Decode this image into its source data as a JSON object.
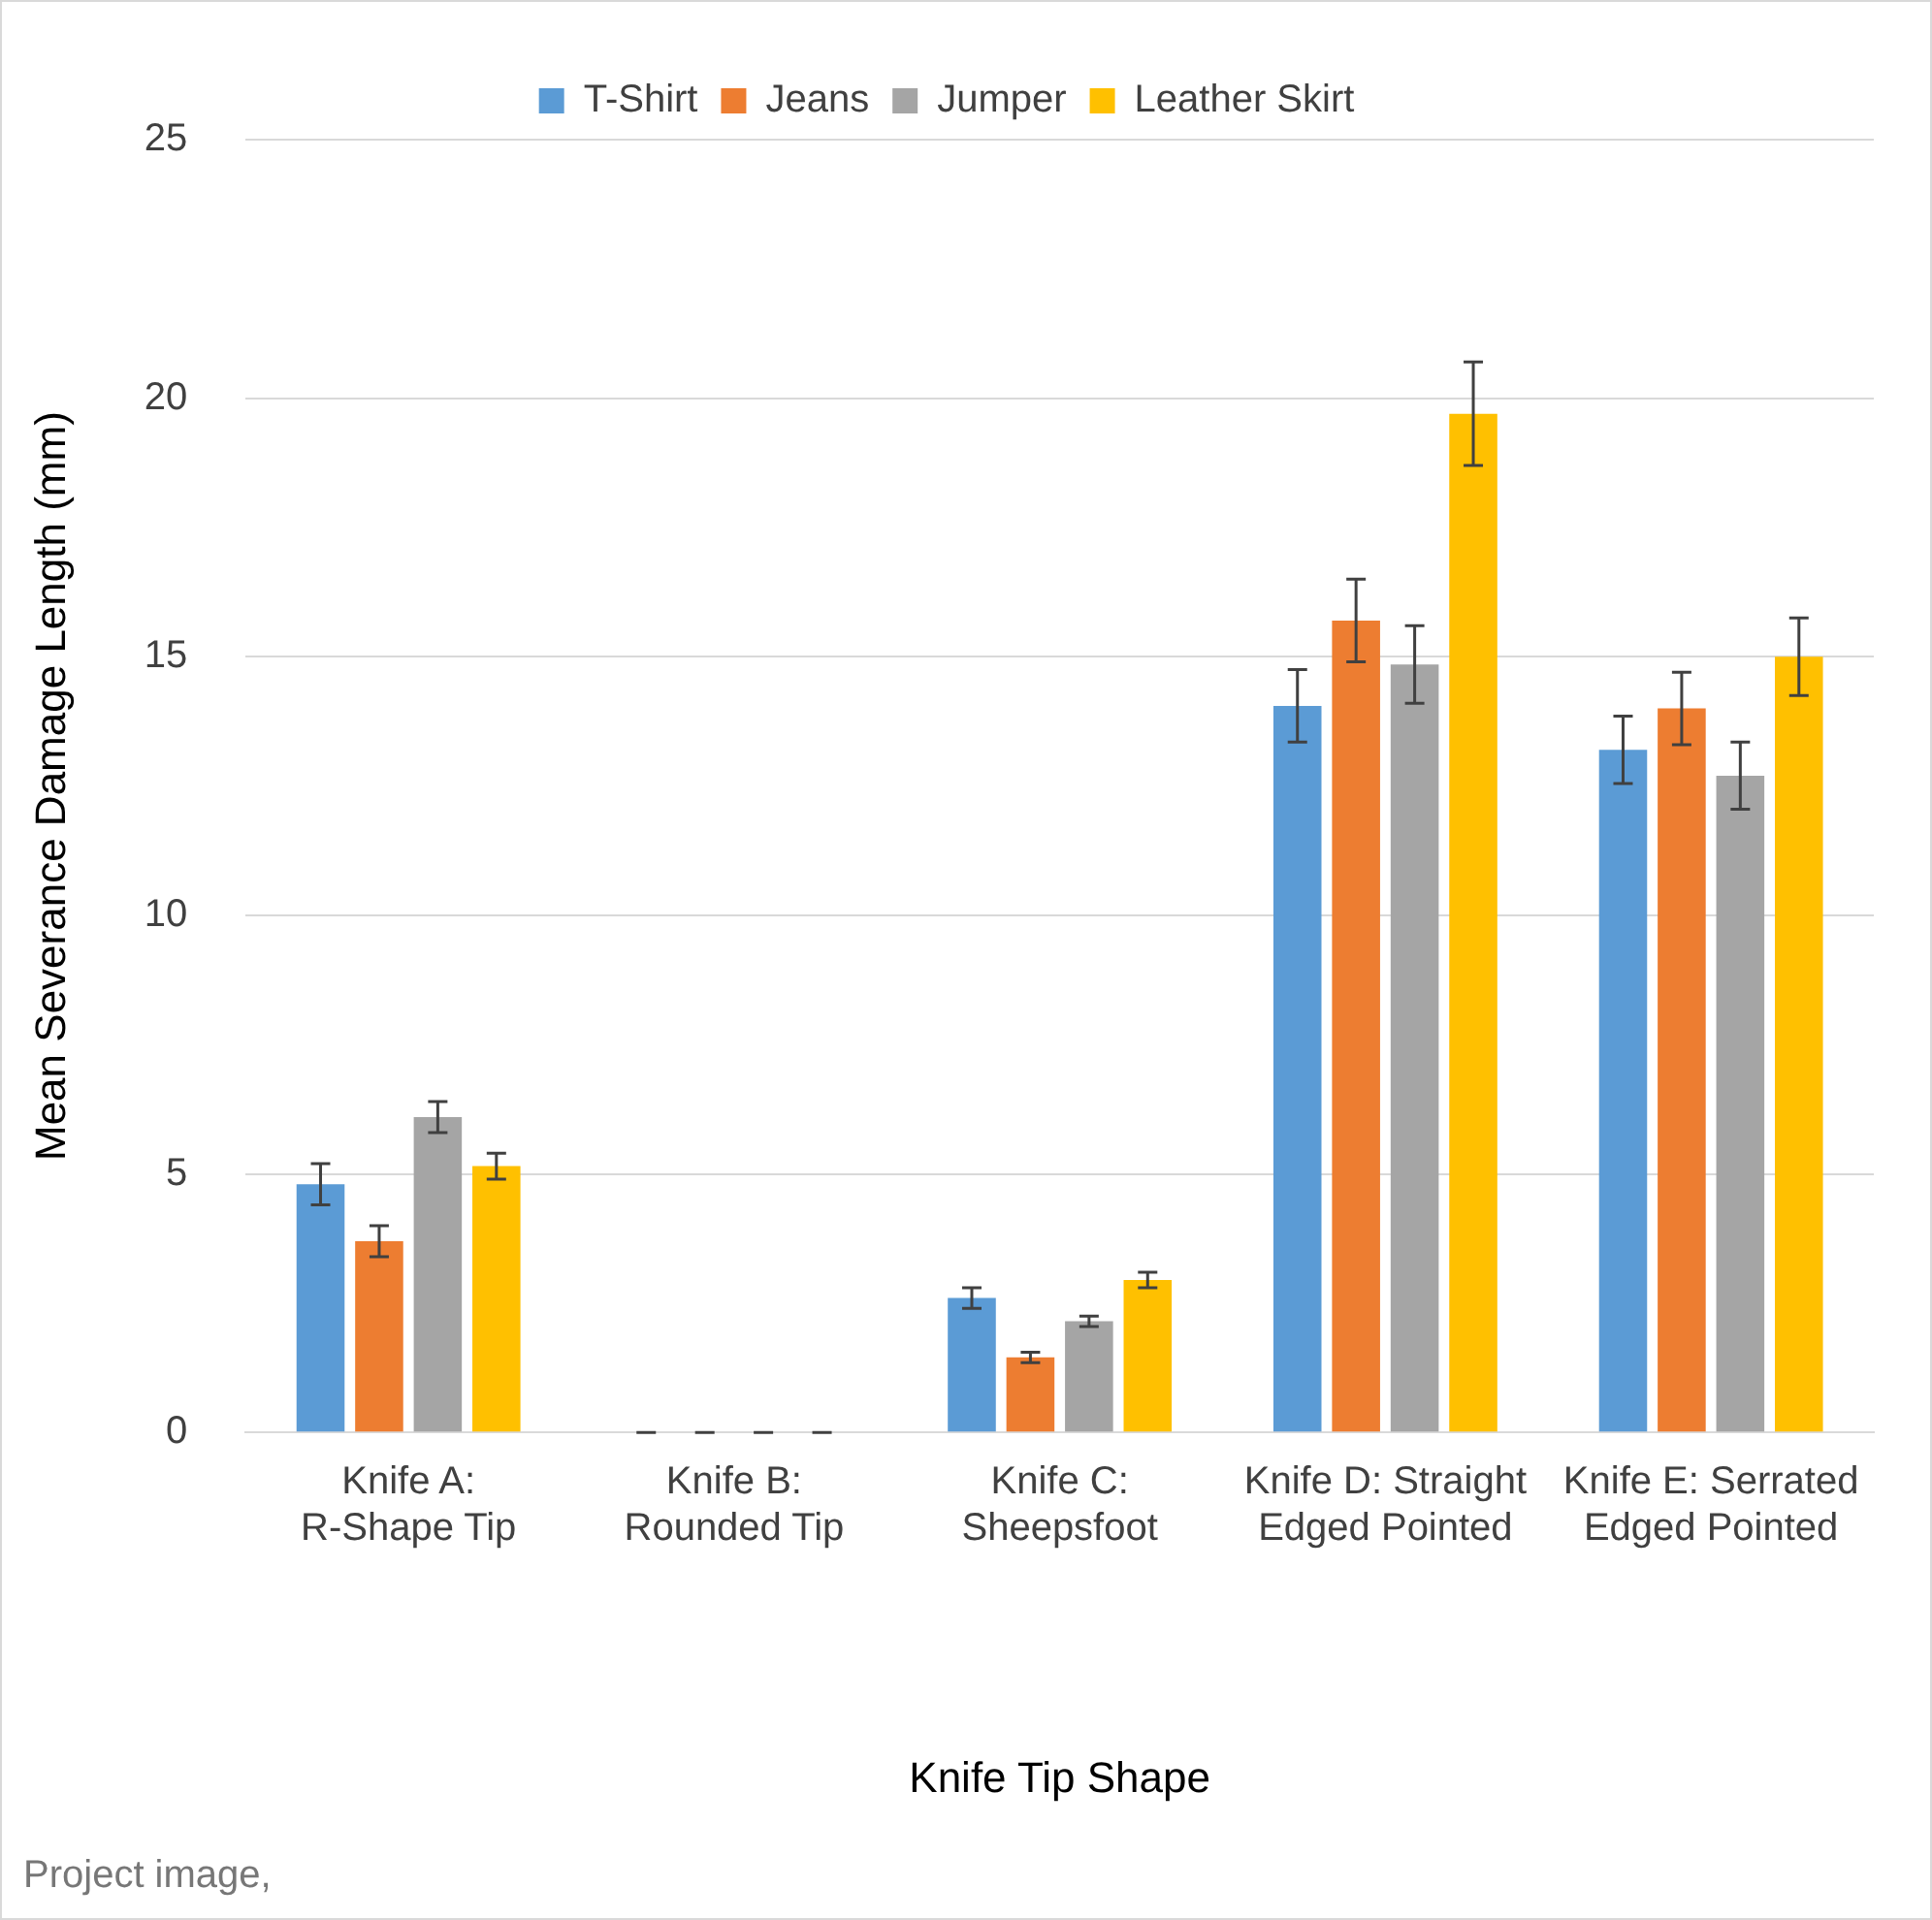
{
  "chart_data": {
    "type": "bar",
    "xlabel": "Knife Tip Shape",
    "ylabel": "Mean Severance Damage Length (mm)",
    "categories": [
      "Knife A:\nR-Shape Tip",
      "Knife B:\nRounded Tip",
      "Knife C:\nSheepsfoot",
      "Knife D: Straight\nEdged Pointed",
      "Knife E: Serrated\nEdged Pointed"
    ],
    "series": [
      {
        "name": "T-Shirt",
        "color": "#5b9bd5",
        "values": [
          4.8,
          0,
          2.6,
          14.05,
          13.2
        ],
        "errors": [
          0.4,
          0,
          0.2,
          0.7,
          0.65
        ]
      },
      {
        "name": "Jeans",
        "color": "#ed7d31",
        "values": [
          3.7,
          0,
          1.45,
          15.7,
          14
        ],
        "errors": [
          0.3,
          0,
          0.1,
          0.8,
          0.7
        ]
      },
      {
        "name": "Jumper",
        "color": "#a5a5a5",
        "values": [
          6.1,
          0,
          2.15,
          14.85,
          12.7
        ],
        "errors": [
          0.3,
          0,
          0.1,
          0.75,
          0.65
        ]
      },
      {
        "name": "Leather Skirt",
        "color": "#ffc000",
        "values": [
          5.15,
          0,
          2.95,
          19.7,
          15
        ],
        "errors": [
          0.25,
          0,
          0.15,
          1,
          0.75
        ]
      }
    ],
    "ylim": [
      0,
      25
    ],
    "yticks": [
      0,
      5,
      10,
      15,
      20,
      25
    ],
    "grid": "y",
    "legend": "top",
    "annotations": [
      "Project image,"
    ]
  }
}
